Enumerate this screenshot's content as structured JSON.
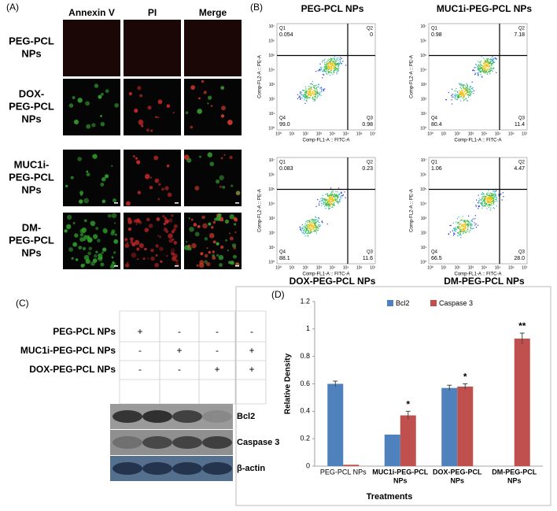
{
  "panel_a": {
    "label": "(A)",
    "columns": [
      "Annexin V",
      "PI",
      "Merge"
    ],
    "rows": [
      [
        "PEG-PCL",
        "NPs"
      ],
      [
        "DOX-",
        "PEG-PCL",
        "NPs"
      ],
      [
        "MUC1i-",
        "PEG-PCL",
        "NPs"
      ],
      [
        "DM-",
        "PEG-PCL",
        "NPs"
      ]
    ]
  },
  "panel_b": {
    "label": "(B)",
    "x_axis_label": "Comp-FL1-A :: FITC-A",
    "y_axis_label": "Comp-FL2-A :: PE-A",
    "axis_ticks": [
      "10⁰",
      "10¹",
      "10²",
      "10³",
      "10⁴",
      "10⁵",
      "10⁶",
      "10⁷"
    ],
    "quadrant_names": [
      "Q1",
      "Q2",
      "Q3",
      "Q4"
    ],
    "plots": [
      {
        "title": "PEG-PCL NPs",
        "quadrants": [
          "0.054",
          "0",
          "0.98",
          "99.0"
        ]
      },
      {
        "title": "MUC1i-PEG-PCL NPs",
        "quadrants": [
          "0.98",
          "7.18",
          "11.4",
          "80.4"
        ]
      },
      {
        "title": "DOX-PEG-PCL NPs",
        "quadrants": [
          "0.083",
          "0.23",
          "11.6",
          "88.1"
        ]
      },
      {
        "title": "DM-PEG-PCL NPs",
        "quadrants": [
          "1.06",
          "4.47",
          "28.0",
          "66.5"
        ]
      }
    ]
  },
  "panel_c": {
    "label": "(C)",
    "treatments": [
      {
        "name": "PEG-PCL  NPs",
        "signs": [
          "+",
          "-",
          "-",
          "-"
        ]
      },
      {
        "name": "MUC1i-PEG-PCL  NPs",
        "signs": [
          "-",
          "+",
          "-",
          "+"
        ]
      },
      {
        "name": "DOX-PEG-PCL  NPs",
        "signs": [
          "-",
          "-",
          "+",
          "+"
        ]
      }
    ],
    "blots": [
      "Bcl2",
      "Caspase 3",
      "β-actin"
    ]
  },
  "chart_data": {
    "type": "bar",
    "panel_label": "(D)",
    "x_label": "Treatments",
    "y_label": "Relative Density",
    "categories": [
      [
        "PEG-PCL  NPs"
      ],
      [
        "MUC1i-PEG-PCL",
        "NPs"
      ],
      [
        "DOX-PEG-PCL",
        "NPs"
      ],
      [
        "DM-PEG-PCL",
        "NPs"
      ]
    ],
    "series": [
      {
        "name": "Bcl2",
        "color": "#4f81bd",
        "values": [
          0.6,
          0.23,
          0.57,
          0
        ],
        "errors": [
          0.02,
          null,
          0.02,
          null
        ]
      },
      {
        "name": "Caspase 3",
        "color": "#c0504d",
        "values": [
          0.01,
          0.37,
          0.58,
          0.93
        ],
        "errors": [
          null,
          0.03,
          0.02,
          0.04
        ]
      }
    ],
    "significance": [
      null,
      "*",
      "*",
      "**"
    ],
    "ylim": [
      0,
      1.2
    ],
    "yticks": [
      0,
      0.2,
      0.4,
      0.6,
      0.8,
      1,
      1.2
    ],
    "legend": "top"
  }
}
